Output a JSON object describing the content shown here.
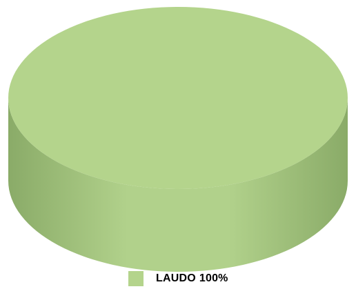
{
  "chart_data": {
    "type": "pie",
    "style": "3d",
    "slices": [
      {
        "label": "LAUDO",
        "value": 100,
        "percent_label": "100%"
      }
    ],
    "legend_position": "bottom",
    "colors": {
      "top": "#b4d48c",
      "side_dark": "#8aab68",
      "side_light": "#b1d18b"
    }
  }
}
